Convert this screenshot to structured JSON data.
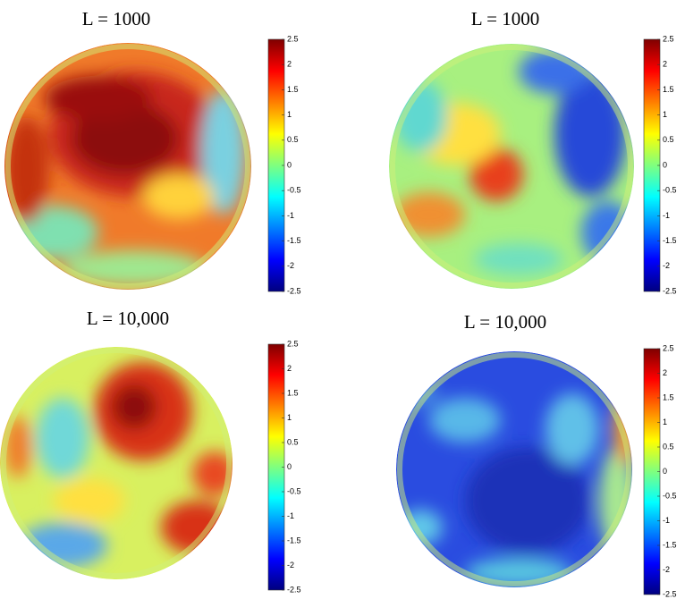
{
  "chart_data": [
    {
      "type": "sphere-heatmap",
      "title": "L = 1000",
      "colormap": "jet",
      "clim": [
        -2.5,
        2.5
      ],
      "cticks": [
        2.5,
        2,
        1.5,
        1,
        0.5,
        0,
        -0.5,
        -1,
        -1.5,
        -2,
        -2.5
      ]
    },
    {
      "type": "sphere-heatmap",
      "title": "L = 1000",
      "colormap": "jet",
      "clim": [
        -2.5,
        2.5
      ],
      "cticks": [
        2.5,
        2,
        1.5,
        1,
        0.5,
        0,
        -0.5,
        -1,
        -1.5,
        -2,
        -2.5
      ]
    },
    {
      "type": "sphere-heatmap",
      "title": "L = 10,000",
      "colormap": "jet",
      "clim": [
        -2.5,
        2.5
      ],
      "cticks": [
        2.5,
        2,
        1.5,
        1,
        0.5,
        0,
        -0.5,
        -1,
        -1.5,
        -2,
        -2.5
      ]
    },
    {
      "type": "sphere-heatmap",
      "title": "L = 10,000",
      "colormap": "jet",
      "clim": [
        -2.5,
        2.5
      ],
      "cticks": [
        2.5,
        2,
        1.5,
        1,
        0.5,
        0,
        -0.5,
        -1,
        -1.5,
        -2,
        -2.5
      ]
    }
  ]
}
